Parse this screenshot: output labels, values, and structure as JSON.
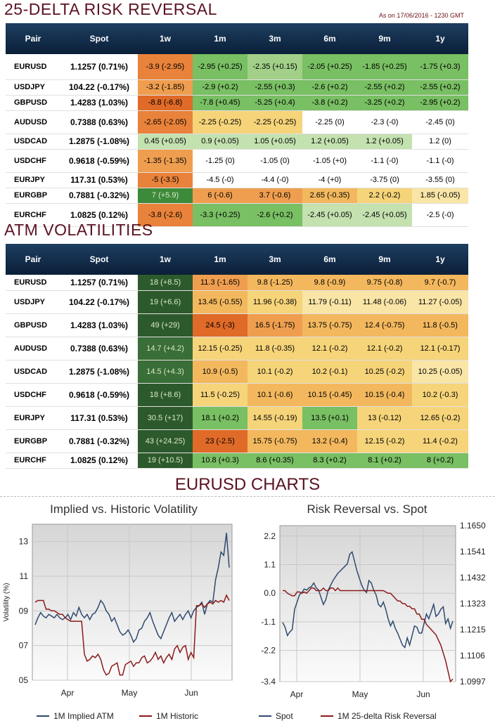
{
  "risk_reversal": {
    "title": "25-DELTA RISK REVERSAL",
    "as_of": "As on 17/06/2016 - 1230 GMT",
    "headers": [
      "Pair",
      "Spot",
      "1w",
      "1m",
      "3m",
      "6m",
      "9m",
      "1y"
    ],
    "rows": [
      {
        "pair": "EURUSD",
        "spot": "1.1257 (0.71%)",
        "cells": [
          "-3.9 (-2.95)",
          "-2.95 (+0.25)",
          "-2.35 (+0.15)",
          "-2.05 (+0.25)",
          "-1.85 (+0.25)",
          "-1.75 (+0.3)"
        ],
        "colors": [
          "#e9823a",
          "#79bf63",
          "#a2d088",
          "#79bf63",
          "#79bf63",
          "#79bf63"
        ]
      },
      {
        "pair": "USDJPY",
        "spot": "104.22 (-0.17%)",
        "cells": [
          "-3.2 (-1.85)",
          "-2.9 (+0.2)",
          "-2.55 (+0.3)",
          "-2.6 (+0.2)",
          "-2.55 (+0.2)",
          "-2.55 (+0.2)"
        ],
        "colors": [
          "#ef9e4f",
          "#79bf63",
          "#79bf63",
          "#79bf63",
          "#79bf63",
          "#79bf63"
        ]
      },
      {
        "pair": "GBPUSD",
        "spot": "1.4283 (1.03%)",
        "cells": [
          "-8.8 (-6.8)",
          "-7.8 (+0.45)",
          "-5.25 (+0.4)",
          "-3.8 (+0.2)",
          "-3.25 (+0.2)",
          "-2.95 (+0.2)"
        ],
        "colors": [
          "#e06a27",
          "#79bf63",
          "#79bf63",
          "#79bf63",
          "#79bf63",
          "#79bf63"
        ]
      },
      {
        "pair": "AUDUSD",
        "spot": "0.7388 (0.63%)",
        "cells": [
          "-2.65 (-2.05)",
          "-2.25 (-0.25)",
          "-2.25 (-0.25)",
          "-2.25 (0)",
          "-2.3 (-0)",
          "-2.45 (0)"
        ],
        "colors": [
          "#e9823a",
          "#f6d47a",
          "#f6d47a",
          "#ffffff",
          "#ffffff",
          "#ffffff"
        ]
      },
      {
        "pair": "USDCAD",
        "spot": "1.2875 (-1.08%)",
        "cells": [
          "0.45 (+0.05)",
          "0.9 (+0.05)",
          "1.05 (+0.05)",
          "1.2 (+0.05)",
          "1.2 (+0.05)",
          "1.2 (0)"
        ],
        "colors": [
          "#c4e1b0",
          "#c4e1b0",
          "#c4e1b0",
          "#c4e1b0",
          "#c4e1b0",
          "#ffffff"
        ]
      },
      {
        "pair": "USDCHF",
        "spot": "0.9618 (-0.59%)",
        "cells": [
          "-1.35 (-1.35)",
          "-1.25 (0)",
          "-1.05 (0)",
          "-1.05 (+0)",
          "-1.1 (-0)",
          "-1.1 (-0)"
        ],
        "colors": [
          "#ef9e4f",
          "#ffffff",
          "#ffffff",
          "#ffffff",
          "#ffffff",
          "#ffffff"
        ]
      },
      {
        "pair": "EURJPY",
        "spot": "117.31 (0.53%)",
        "cells": [
          "-5 (-3.5)",
          "-4.5 (-0)",
          "-4.4 (-0)",
          "-4 (+0)",
          "-3.75 (0)",
          "-3.55 (0)"
        ],
        "colors": [
          "#e9823a",
          "#ffffff",
          "#ffffff",
          "#ffffff",
          "#ffffff",
          "#ffffff"
        ]
      },
      {
        "pair": "EURGBP",
        "spot": "0.7881 (-0.32%)",
        "cells": [
          "7 (+5.9)",
          "6 (-0.6)",
          "3.7 (-0.6)",
          "2.65 (-0.35)",
          "2.2 (-0.2)",
          "1.85 (-0.05)"
        ],
        "colors": [
          "#3d8a3b",
          "#ef9e4f",
          "#ef9e4f",
          "#f3b85e",
          "#f6d47a",
          "#f9e5a6"
        ]
      },
      {
        "pair": "EURCHF",
        "spot": "1.0825 (0.12%)",
        "cells": [
          "-3.8 (-2.6)",
          "-3.3 (+0.25)",
          "-2.6 (+0.2)",
          "-2.45 (+0.05)",
          "-2.45 (+0.05)",
          "-2.5 (-0)"
        ],
        "colors": [
          "#e9823a",
          "#79bf63",
          "#79bf63",
          "#c4e1b0",
          "#c4e1b0",
          "#ffffff"
        ]
      }
    ]
  },
  "atm_vol": {
    "title": "ATM VOLATILITIES",
    "headers": [
      "Pair",
      "Spot",
      "1w",
      "1m",
      "3m",
      "6m",
      "9m",
      "1y"
    ],
    "rows": [
      {
        "pair": "EURUSD",
        "spot": "1.1257 (0.71%)",
        "cells": [
          "18 (+8.5)",
          "11.3 (-1.65)",
          "9.8 (-1.25)",
          "9.8 (-0.9)",
          "9.75 (-0.8)",
          "9.7 (-0.7)"
        ],
        "colors": [
          "#2d5a2c",
          "#ef9e4f",
          "#f3b85e",
          "#f3b85e",
          "#f3b85e",
          "#f3b85e"
        ]
      },
      {
        "pair": "USDJPY",
        "spot": "104.22 (-0.17%)",
        "cells": [
          "19 (+6.6)",
          "13.45 (-0.55)",
          "11.96 (-0.38)",
          "11.79 (-0.11)",
          "11.48 (-0.06)",
          "11.27 (-0.05)"
        ],
        "colors": [
          "#2d5a2c",
          "#f3b85e",
          "#f6d47a",
          "#f9e5a6",
          "#f9e5a6",
          "#f9e5a6"
        ]
      },
      {
        "pair": "GBPUSD",
        "spot": "1.4283 (1.03%)",
        "cells": [
          "49 (+29)",
          "24.5 (-3)",
          "16.5 (-1.75)",
          "13.75 (-0.75)",
          "12.4 (-0.75)",
          "11.8 (-0.5)"
        ],
        "colors": [
          "#2d5a2c",
          "#e06a27",
          "#ef9e4f",
          "#f3b85e",
          "#f3b85e",
          "#f3b85e"
        ]
      },
      {
        "pair": "AUDUSD",
        "spot": "0.7388 (0.63%)",
        "cells": [
          "14.7 (+4.2)",
          "12.15 (-0.25)",
          "11.8 (-0.35)",
          "12.1 (-0.2)",
          "12.1 (-0.2)",
          "12.1 (-0.17)"
        ],
        "colors": [
          "#3a6e38",
          "#f6d47a",
          "#f6d47a",
          "#f6d47a",
          "#f6d47a",
          "#f6d47a"
        ]
      },
      {
        "pair": "USDCAD",
        "spot": "1.2875 (-1.08%)",
        "cells": [
          "14.5 (+4.3)",
          "10.9 (-0.5)",
          "10.1 (-0.2)",
          "10.2 (-0.1)",
          "10.25 (-0.2)",
          "10.25 (-0.05)"
        ],
        "colors": [
          "#3a6e38",
          "#f3b85e",
          "#f6d47a",
          "#f6d47a",
          "#f6d47a",
          "#f9e5a6"
        ]
      },
      {
        "pair": "USDCHF",
        "spot": "0.9618 (-0.59%)",
        "cells": [
          "18 (+8.6)",
          "11.5 (-0.25)",
          "10.1 (-0.6)",
          "10.15 (-0.45)",
          "10.15 (-0.4)",
          "10.2 (-0.3)"
        ],
        "colors": [
          "#2d5a2c",
          "#f6d47a",
          "#f3b85e",
          "#f3b85e",
          "#f3b85e",
          "#f6d47a"
        ]
      },
      {
        "pair": "EURJPY",
        "spot": "117.31 (0.53%)",
        "cells": [
          "30.5 (+17)",
          "18.1 (+0.2)",
          "14.55 (-0.19)",
          "13.5 (+0.1)",
          "13 (-0.12)",
          "12.65 (-0.2)"
        ],
        "colors": [
          "#2d5a2c",
          "#79bf63",
          "#f6d47a",
          "#79bf63",
          "#f6d47a",
          "#f6d47a"
        ]
      },
      {
        "pair": "EURGBP",
        "spot": "0.7881 (-0.32%)",
        "cells": [
          "43 (+24.25)",
          "23 (-2.5)",
          "15.75 (-0.75)",
          "13.2 (-0.4)",
          "12.15 (-0.2)",
          "11.4 (-0.2)"
        ],
        "colors": [
          "#2d5a2c",
          "#e06a27",
          "#f3b85e",
          "#f3b85e",
          "#f6d47a",
          "#f6d47a"
        ]
      },
      {
        "pair": "EURCHF",
        "spot": "1.0825 (0.12%)",
        "cells": [
          "19 (+10.5)",
          "10.8 (+0.3)",
          "8.6 (+0.35)",
          "8.3 (+0.2)",
          "8.1 (+0.2)",
          "8 (+0.2)"
        ],
        "colors": [
          "#2d5a2c",
          "#79bf63",
          "#79bf63",
          "#79bf63",
          "#79bf63",
          "#79bf63"
        ]
      }
    ]
  },
  "charts_title": "EURUSD CHARTS",
  "chart_data": [
    {
      "type": "line",
      "title": "Implied vs. Historic Volatility",
      "ylabel": "Volatility (%)",
      "ylim": [
        5,
        14
      ],
      "yticks": [
        "13",
        "11",
        "09",
        "07",
        "05"
      ],
      "xticks": [
        "Apr",
        "May",
        "Jun"
      ],
      "series": [
        {
          "name": "1M Implied ATM",
          "color": "#2e4a6e",
          "values": [
            8.2,
            8.6,
            8.9,
            8.7,
            8.6,
            8.8,
            8.7,
            8.6,
            8.8,
            8.6,
            8.5,
            8.6,
            8.8,
            8.5,
            8.9,
            8.7,
            9.2,
            8.8,
            8.6,
            8.8,
            8.5,
            8.8,
            8.9,
            9.2,
            9.6,
            9.4,
            9.0,
            8.8,
            8.4,
            8.6,
            8.2,
            7.8,
            7.6,
            7.7,
            7.9,
            7.6,
            7.2,
            7.4,
            7.9,
            8.0,
            8.4,
            8.6,
            8.9,
            8.4,
            8.0,
            7.6,
            7.4,
            7.8,
            8.2,
            8.6,
            8.9,
            8.4,
            8.6,
            8.8,
            8.5,
            8.8,
            9.0,
            8.6,
            9.0,
            9.2,
            9.3,
            9.5,
            8.8,
            9.4,
            9.6,
            9.5,
            10.8,
            11.5,
            12.4,
            12.2,
            13.5,
            11.5
          ]
        },
        {
          "name": "1M Historic",
          "color": "#8b1a1a",
          "values": [
            9.5,
            9.6,
            9.6,
            9.6,
            9.1,
            9.1,
            9.0,
            9.0,
            8.9,
            8.8,
            8.8,
            8.6,
            8.5,
            8.4,
            8.4,
            8.4,
            8.4,
            8.4,
            6.5,
            6.1,
            6.2,
            6.4,
            6.3,
            6.5,
            6.2,
            5.6,
            5.3,
            5.4,
            5.8,
            5.9,
            6.0,
            5.3,
            5.3,
            5.9,
            6.0,
            6.1,
            5.8,
            6.0,
            6.0,
            6.3,
            6.4,
            6.0,
            6.1,
            6.3,
            6.6,
            6.2,
            6.4,
            6.0,
            6.3,
            6.5,
            6.2,
            6.8,
            7.0,
            6.6,
            6.9,
            7.0,
            6.2,
            6.6,
            6.3,
            9.3,
            9.3,
            9.4,
            9.2,
            9.4,
            9.5,
            9.4,
            9.6,
            9.5,
            9.6,
            9.5,
            9.9,
            9.6
          ]
        }
      ]
    },
    {
      "type": "line",
      "title": "Risk Reversal vs. Spot",
      "ylim_left": [
        -3.4,
        2.6
      ],
      "ylim_right": [
        1.0997,
        1.165
      ],
      "yticks_left": [
        "2.2",
        "1.1",
        "0.0",
        "-1.1",
        "-2.2",
        "-3.4"
      ],
      "yticks_right": [
        "1.1650",
        "1.1541",
        "1.1432",
        "1.1323",
        "1.1215",
        "1.1106",
        "1.0997"
      ],
      "xticks": [
        "Apr",
        "May",
        "Jun"
      ],
      "series": [
        {
          "name": "Spot",
          "color": "#2e4a6e",
          "axis": "right",
          "values": [
            1.1245,
            1.1225,
            1.119,
            1.1205,
            1.1215,
            1.13,
            1.133,
            1.136,
            1.137,
            1.1385,
            1.138,
            1.139,
            1.1395,
            1.141,
            1.139,
            1.138,
            1.135,
            1.132,
            1.134,
            1.138,
            1.14,
            1.142,
            1.1435,
            1.145,
            1.146,
            1.147,
            1.148,
            1.149,
            1.153,
            1.154,
            1.15,
            1.146,
            1.143,
            1.14,
            1.138,
            1.137,
            1.142,
            1.141,
            1.138,
            1.136,
            1.132,
            1.131,
            1.133,
            1.13,
            1.126,
            1.123,
            1.125,
            1.122,
            1.12,
            1.1175,
            1.115,
            1.114,
            1.118,
            1.115,
            1.119,
            1.123,
            1.1225,
            1.12,
            1.12,
            1.124,
            1.128,
            1.126,
            1.129,
            1.132,
            1.127,
            1.128,
            1.13,
            1.131,
            1.124,
            1.126,
            1.122,
            1.125
          ]
        },
        {
          "name": "1M 25-delta Risk Reversal",
          "color": "#8b1a1a",
          "axis": "left",
          "values": [
            0.1,
            0.1,
            0.0,
            -0.05,
            -0.1,
            -0.1,
            0.05,
            0.05,
            0.0,
            0.05,
            0.0,
            0.1,
            0.2,
            0.2,
            0.1,
            0.1,
            0.1,
            0.2,
            0.1,
            0.1,
            0.2,
            0.2,
            0.1,
            0.2,
            0.1,
            0.1,
            0.1,
            0.1,
            0.1,
            0.1,
            0.1,
            0.1,
            0.1,
            0.1,
            0.1,
            0.1,
            0.1,
            0.1,
            0.1,
            0.1,
            0.1,
            0.1,
            0.1,
            0.05,
            0.0,
            0.0,
            -0.1,
            -0.2,
            -0.3,
            -0.3,
            -0.4,
            -0.4,
            -0.5,
            -0.5,
            -0.6,
            -0.6,
            -0.8,
            -0.8,
            -1.0,
            -1.0,
            -1.2,
            -1.3,
            -1.4,
            -1.5,
            -1.6,
            -1.8,
            -2.0,
            -2.3,
            -2.6,
            -3.0,
            -3.4,
            -3.3
          ]
        }
      ]
    }
  ]
}
